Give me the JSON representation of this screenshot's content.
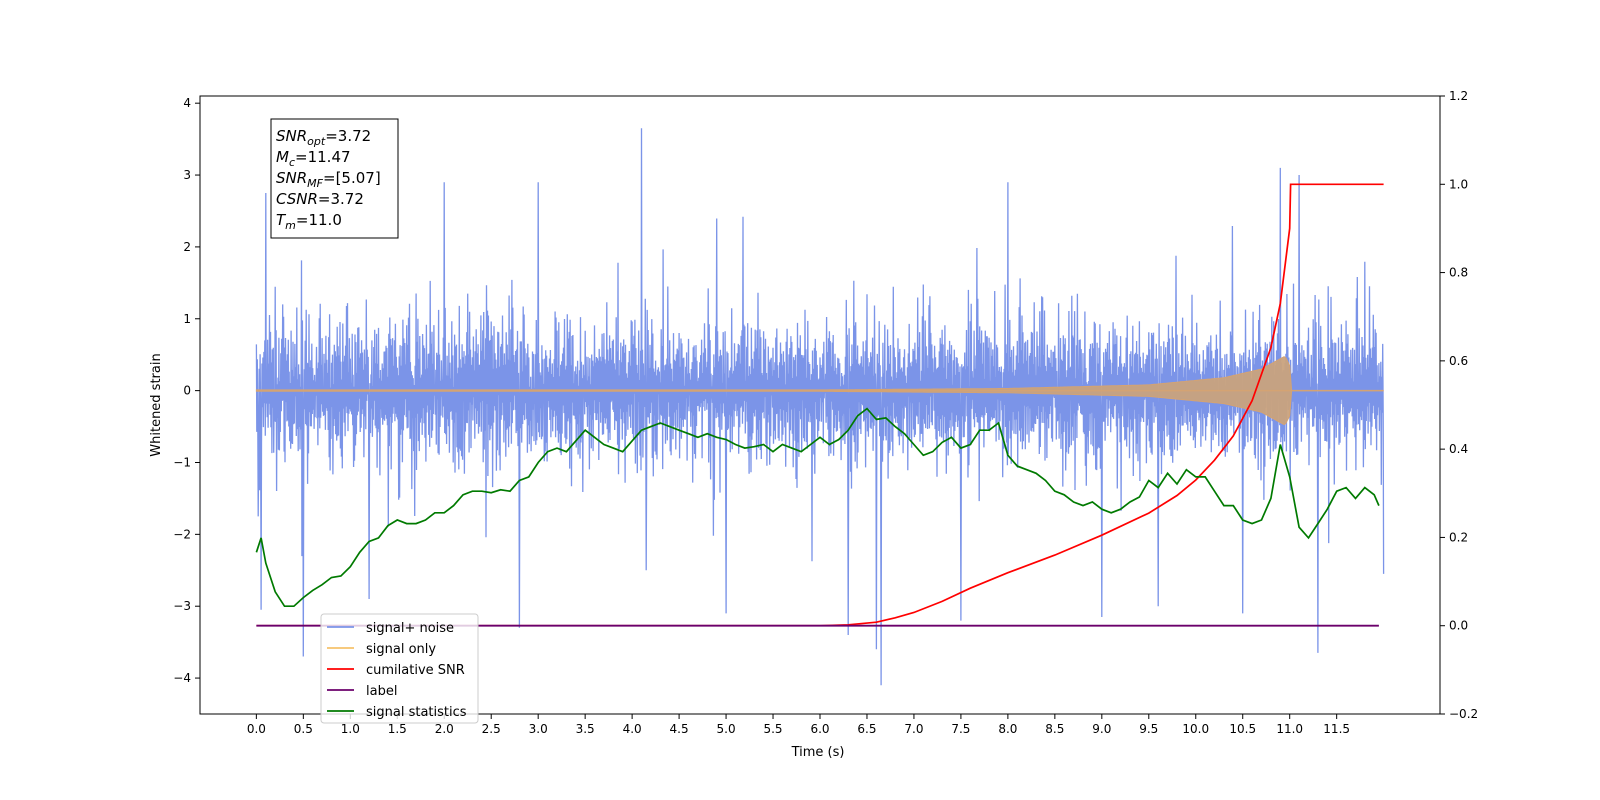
{
  "chart_data": {
    "type": "line",
    "xlabel": "Time (s)",
    "ylabel": "Whitened strain",
    "xlim": [
      -0.6,
      12.6
    ],
    "ylim_left": [
      -4.5,
      4.1
    ],
    "ylim_right": [
      -0.2,
      1.2
    ],
    "x_ticks": [
      0.0,
      0.5,
      1.0,
      1.5,
      2.0,
      2.5,
      3.0,
      3.5,
      4.0,
      4.5,
      5.0,
      5.5,
      6.0,
      6.5,
      7.0,
      7.5,
      8.0,
      8.5,
      9.0,
      9.5,
      10.0,
      10.5,
      11.0,
      11.5
    ],
    "x_tick_labels": [
      "0.0",
      "0.5",
      "1.0",
      "1.5",
      "2.0",
      "2.5",
      "3.0",
      "3.5",
      "4.0",
      "4.5",
      "5.0",
      "5.5",
      "6.0",
      "6.5",
      "7.0",
      "7.5",
      "8.0",
      "8.5",
      "9.0",
      "9.5",
      "10.0",
      "10.5",
      "11.0",
      "11.5"
    ],
    "y_left_ticks": [
      -4,
      -3,
      -2,
      -1,
      0,
      1,
      2,
      3,
      4
    ],
    "y_left_tick_labels": [
      "−4",
      "−3",
      "−2",
      "−1",
      "0",
      "1",
      "2",
      "3",
      "4"
    ],
    "y_right_ticks": [
      -0.2,
      0.0,
      0.2,
      0.4,
      0.6,
      0.8,
      1.0,
      1.2
    ],
    "y_right_tick_labels": [
      "−0.2",
      "0.0",
      "0.2",
      "0.4",
      "0.6",
      "0.8",
      "1.0",
      "1.2"
    ],
    "grid": false,
    "legend_position": "lower-left",
    "legend": [
      {
        "label": "signal+ noise",
        "color": "#7b94e8"
      },
      {
        "label": "signal only",
        "color": "#f6c26b"
      },
      {
        "label": "cumilative SNR",
        "color": "#ff0000"
      },
      {
        "label": "label",
        "color": "#6b006b"
      },
      {
        "label": "signal statistics",
        "color": "#007a00"
      }
    ],
    "annotation": {
      "lines": [
        {
          "name": "SNR",
          "sub": "opt",
          "value": "=3.72"
        },
        {
          "name": "M",
          "sub": "c",
          "value": "=11.47"
        },
        {
          "name": "SNR",
          "sub": "MF",
          "value": "=[5.07]"
        },
        {
          "name": "CSNR",
          "sub": "",
          "value": "=3.72"
        },
        {
          "name": "T",
          "sub": "m",
          "value": "=11.0"
        }
      ]
    },
    "series": [
      {
        "name": "signal+ noise",
        "axis": "left",
        "color": "#7b94e8",
        "t_range": [
          0.0,
          12.0
        ],
        "envelope_upper": 1.6,
        "envelope_lower": -1.6,
        "spikes": [
          [
            0.02,
            1.55
          ],
          [
            0.02,
            -1.75
          ],
          [
            0.05,
            -3.05
          ],
          [
            0.1,
            2.75
          ],
          [
            0.5,
            -3.7
          ],
          [
            1.2,
            -2.9
          ],
          [
            2.0,
            2.9
          ],
          [
            2.8,
            -3.3
          ],
          [
            3.0,
            2.9
          ],
          [
            4.1,
            3.65
          ],
          [
            4.15,
            -2.5
          ],
          [
            5.0,
            -3.1
          ],
          [
            6.3,
            -3.4
          ],
          [
            6.6,
            -3.6
          ],
          [
            6.65,
            -4.1
          ],
          [
            7.5,
            -3.2
          ],
          [
            8.0,
            2.9
          ],
          [
            9.0,
            -3.15
          ],
          [
            9.6,
            -3.0
          ],
          [
            10.5,
            -3.1
          ],
          [
            10.9,
            3.1
          ],
          [
            11.3,
            -3.65
          ],
          [
            11.1,
            3.0
          ],
          [
            12.0,
            -2.55
          ]
        ]
      },
      {
        "name": "signal only",
        "axis": "left",
        "color": "#d4a373",
        "chirp_envelope": [
          [
            0.0,
            0.01
          ],
          [
            6.0,
            0.01
          ],
          [
            8.0,
            0.03
          ],
          [
            9.5,
            0.08
          ],
          [
            10.3,
            0.18
          ],
          [
            10.7,
            0.3
          ],
          [
            10.95,
            0.48
          ],
          [
            11.0,
            0.35
          ],
          [
            11.02,
            0.0
          ],
          [
            12.0,
            0.0
          ]
        ],
        "note": "fill symmetric about 0"
      },
      {
        "name": "cumilative SNR",
        "axis": "right",
        "color": "#ff0000",
        "x": [
          0.0,
          5.5,
          6.0,
          6.3,
          6.6,
          6.8,
          7.0,
          7.3,
          7.6,
          8.0,
          8.5,
          9.0,
          9.5,
          9.8,
          10.0,
          10.2,
          10.4,
          10.6,
          10.8,
          10.9,
          11.0,
          11.01,
          12.0
        ],
        "y": [
          0.0,
          0.0,
          0.0,
          0.002,
          0.008,
          0.018,
          0.03,
          0.055,
          0.085,
          0.12,
          0.16,
          0.205,
          0.255,
          0.295,
          0.33,
          0.375,
          0.43,
          0.51,
          0.63,
          0.73,
          0.9,
          1.0,
          1.0
        ]
      },
      {
        "name": "label",
        "axis": "right",
        "color": "#6b006b",
        "x": [
          0.0,
          11.95
        ],
        "y": [
          0.0,
          0.0
        ]
      },
      {
        "name": "signal statistics",
        "axis": "left",
        "color": "#007a00",
        "x": [
          0.0,
          0.05,
          0.1,
          0.2,
          0.3,
          0.4,
          0.5,
          0.6,
          0.7,
          0.8,
          0.9,
          1.0,
          1.1,
          1.2,
          1.3,
          1.4,
          1.5,
          1.6,
          1.7,
          1.8,
          1.9,
          2.0,
          2.1,
          2.2,
          2.3,
          2.4,
          2.5,
          2.6,
          2.7,
          2.8,
          2.9,
          3.0,
          3.1,
          3.2,
          3.3,
          3.4,
          3.5,
          3.6,
          3.7,
          3.8,
          3.9,
          4.0,
          4.1,
          4.2,
          4.3,
          4.4,
          4.5,
          4.6,
          4.7,
          4.8,
          4.9,
          5.0,
          5.1,
          5.2,
          5.3,
          5.4,
          5.5,
          5.6,
          5.7,
          5.8,
          5.9,
          6.0,
          6.1,
          6.2,
          6.3,
          6.4,
          6.5,
          6.6,
          6.7,
          6.8,
          6.9,
          7.0,
          7.1,
          7.2,
          7.3,
          7.4,
          7.5,
          7.6,
          7.7,
          7.8,
          7.9,
          8.0,
          8.1,
          8.2,
          8.3,
          8.4,
          8.5,
          8.6,
          8.7,
          8.8,
          8.9,
          9.0,
          9.1,
          9.2,
          9.3,
          9.4,
          9.5,
          9.6,
          9.7,
          9.8,
          9.9,
          10.0,
          10.1,
          10.2,
          10.3,
          10.4,
          10.5,
          10.6,
          10.7,
          10.8,
          10.9,
          11.0,
          11.1,
          11.2,
          11.3,
          11.4,
          11.5,
          11.6,
          11.7,
          11.8,
          11.9,
          11.95
        ],
        "y": [
          -2.25,
          -2.05,
          -2.4,
          -2.8,
          -3.0,
          -3.0,
          -2.88,
          -2.78,
          -2.7,
          -2.6,
          -2.58,
          -2.45,
          -2.25,
          -2.1,
          -2.05,
          -1.88,
          -1.8,
          -1.85,
          -1.85,
          -1.8,
          -1.7,
          -1.7,
          -1.6,
          -1.45,
          -1.4,
          -1.4,
          -1.42,
          -1.38,
          -1.4,
          -1.25,
          -1.2,
          -1.0,
          -0.85,
          -0.8,
          -0.85,
          -0.7,
          -0.55,
          -0.65,
          -0.75,
          -0.8,
          -0.85,
          -0.7,
          -0.55,
          -0.5,
          -0.45,
          -0.5,
          -0.55,
          -0.6,
          -0.65,
          -0.6,
          -0.65,
          -0.68,
          -0.75,
          -0.8,
          -0.78,
          -0.75,
          -0.85,
          -0.75,
          -0.8,
          -0.85,
          -0.75,
          -0.65,
          -0.75,
          -0.68,
          -0.55,
          -0.35,
          -0.25,
          -0.4,
          -0.38,
          -0.5,
          -0.6,
          -0.75,
          -0.9,
          -0.85,
          -0.72,
          -0.65,
          -0.8,
          -0.75,
          -0.55,
          -0.55,
          -0.45,
          -0.9,
          -1.05,
          -1.1,
          -1.15,
          -1.25,
          -1.4,
          -1.45,
          -1.55,
          -1.6,
          -1.55,
          -1.65,
          -1.7,
          -1.65,
          -1.55,
          -1.48,
          -1.25,
          -1.35,
          -1.15,
          -1.3,
          -1.1,
          -1.2,
          -1.2,
          -1.4,
          -1.6,
          -1.6,
          -1.8,
          -1.85,
          -1.8,
          -1.5,
          -0.75,
          -1.2,
          -1.9,
          -2.05,
          -1.85,
          -1.65,
          -1.4,
          -1.35,
          -1.5,
          -1.35,
          -1.45,
          -1.6
        ]
      }
    ]
  }
}
